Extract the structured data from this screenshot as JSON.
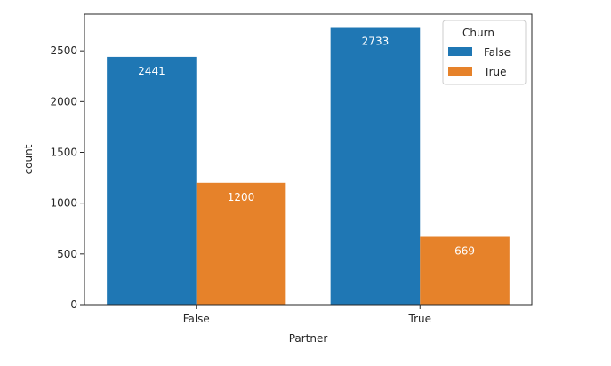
{
  "chart_data": {
    "type": "bar",
    "categories": [
      "False",
      "True"
    ],
    "series": [
      {
        "name": "False",
        "values": [
          2441,
          2733
        ],
        "color": "#1f77b4"
      },
      {
        "name": "True",
        "values": [
          1200,
          669
        ],
        "color": "#e6822a"
      }
    ],
    "xlabel": "Partner",
    "ylabel": "count",
    "ylim": [
      0,
      2860
    ],
    "yticks": [
      0,
      500,
      1000,
      1500,
      2000,
      2500
    ],
    "grid": false,
    "legend": {
      "title": "Churn",
      "placement": "top-right"
    }
  }
}
